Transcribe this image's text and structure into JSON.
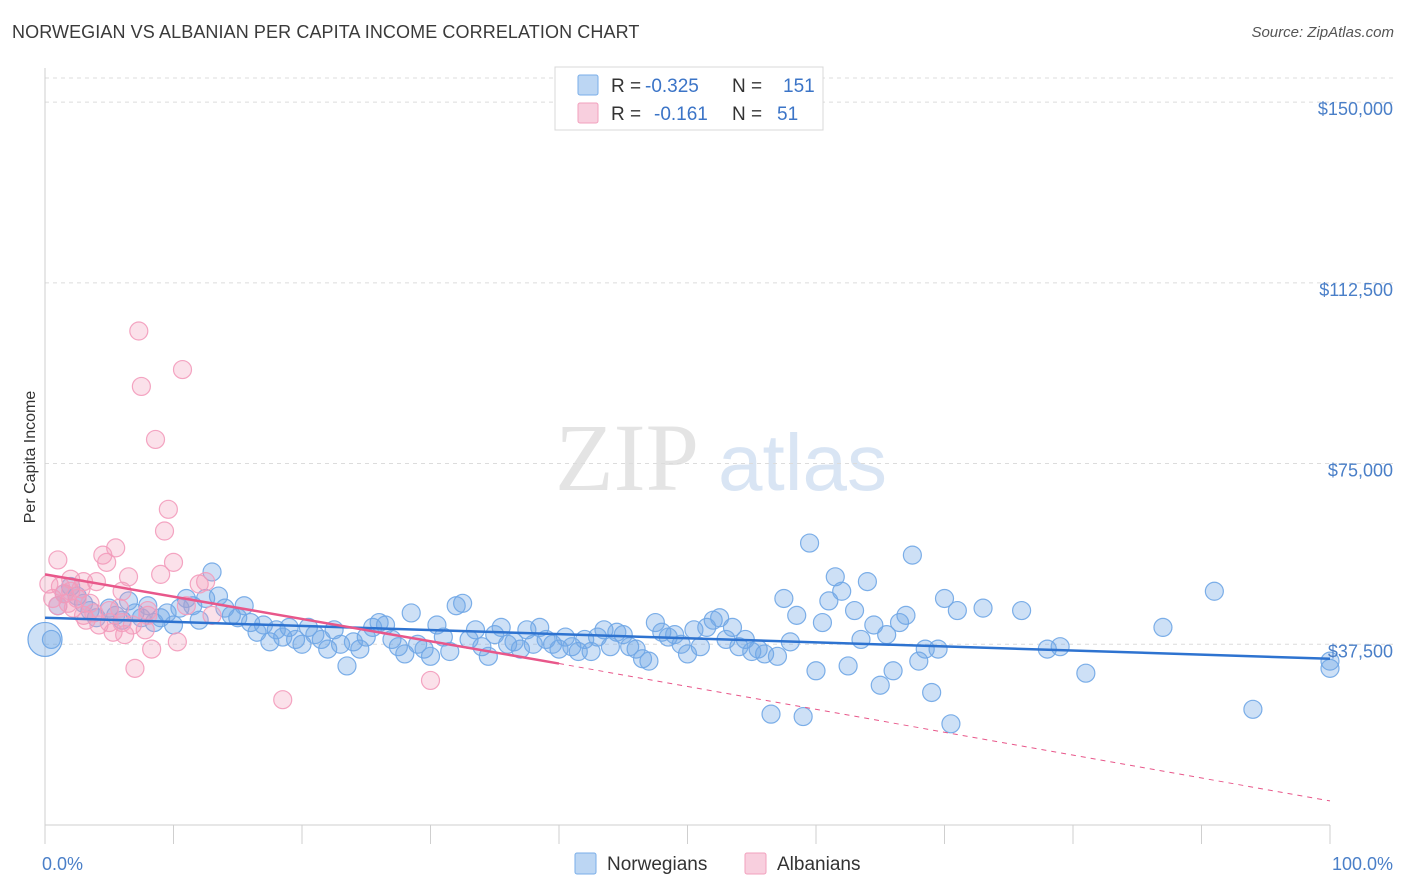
{
  "header": {
    "title": "NORWEGIAN VS ALBANIAN PER CAPITA INCOME CORRELATION CHART",
    "source": "Source: ZipAtlas.com"
  },
  "watermark": {
    "zip": "ZIP",
    "atlas": "atlas"
  },
  "legend": {
    "rows": [
      {
        "r_label": "R =",
        "r_value": "-0.325",
        "n_label": "N =",
        "n_value": "151",
        "color": "#7aaee8"
      },
      {
        "r_label": "R =",
        "r_value": "-0.161",
        "n_label": "N =",
        "n_value": "51",
        "color": "#f2a0bd"
      }
    ]
  },
  "chart_data": {
    "type": "scatter",
    "title": "NORWEGIAN VS ALBANIAN PER CAPITA INCOME CORRELATION CHART",
    "xlabel": "",
    "ylabel": "Per Capita Income",
    "xlim": [
      0,
      100
    ],
    "ylim": [
      0,
      155000
    ],
    "x_tick_labels": [
      "0.0%",
      "100.0%"
    ],
    "y_ticks": [
      37500,
      75000,
      112500,
      150000
    ],
    "y_tick_labels": [
      "$37,500",
      "$75,000",
      "$112,500",
      "$150,000"
    ],
    "grid": "horizontal dashed",
    "legend_position": "top-center",
    "colors": {
      "norwegians": "#6fa6e6",
      "albanians": "#f39bbb",
      "blue_line": "#2e73d0",
      "pink_line": "#e8578a"
    },
    "series": [
      {
        "name": "Norwegians",
        "trend": {
          "x": [
            0,
            100
          ],
          "y": [
            43000,
            34500
          ]
        },
        "points": [
          [
            0.5,
            38500
          ],
          [
            1,
            45500
          ],
          [
            1.5,
            48000
          ],
          [
            2,
            49500
          ],
          [
            2.5,
            47500
          ],
          [
            3,
            46000
          ],
          [
            3.5,
            44500
          ],
          [
            4,
            43000
          ],
          [
            5,
            45000
          ],
          [
            5.5,
            43500
          ],
          [
            6,
            42500
          ],
          [
            7,
            44000
          ],
          [
            7.5,
            43000
          ],
          [
            8,
            45500
          ],
          [
            8.5,
            42000
          ],
          [
            9,
            43000
          ],
          [
            9.5,
            44000
          ],
          [
            10,
            41500
          ],
          [
            10.5,
            45000
          ],
          [
            11,
            47000
          ],
          [
            11.5,
            45500
          ],
          [
            12,
            42500
          ],
          [
            12.5,
            47000
          ],
          [
            13,
            52500
          ],
          [
            13.5,
            47500
          ],
          [
            14,
            45000
          ],
          [
            14.5,
            43500
          ],
          [
            15,
            43000
          ],
          [
            15.5,
            45500
          ],
          [
            16,
            42000
          ],
          [
            16.5,
            40000
          ],
          [
            17,
            41500
          ],
          [
            17.5,
            38000
          ],
          [
            18,
            40500
          ],
          [
            18.5,
            39000
          ],
          [
            19,
            41000
          ],
          [
            19.5,
            38500
          ],
          [
            20,
            37500
          ],
          [
            20.5,
            41000
          ],
          [
            21,
            39500
          ],
          [
            21.5,
            38500
          ],
          [
            22,
            36500
          ],
          [
            22.5,
            40500
          ],
          [
            23,
            37500
          ],
          [
            23.5,
            33000
          ],
          [
            24,
            38000
          ],
          [
            24.5,
            36500
          ],
          [
            25,
            39000
          ],
          [
            25.5,
            41000
          ],
          [
            26,
            42000
          ],
          [
            26.5,
            41500
          ],
          [
            27,
            38500
          ],
          [
            27.5,
            37000
          ],
          [
            28,
            35500
          ],
          [
            28.5,
            44000
          ],
          [
            29,
            37500
          ],
          [
            29.5,
            36500
          ],
          [
            30,
            35000
          ],
          [
            30.5,
            41500
          ],
          [
            31,
            39000
          ],
          [
            31.5,
            36000
          ],
          [
            32,
            45500
          ],
          [
            32.5,
            46000
          ],
          [
            33,
            38500
          ],
          [
            33.5,
            40500
          ],
          [
            34,
            37000
          ],
          [
            34.5,
            35000
          ],
          [
            35,
            39500
          ],
          [
            35.5,
            41000
          ],
          [
            36,
            37500
          ],
          [
            36.5,
            38000
          ],
          [
            37,
            36500
          ],
          [
            37.5,
            40500
          ],
          [
            38,
            37500
          ],
          [
            38.5,
            41000
          ],
          [
            39,
            38500
          ],
          [
            39.5,
            37500
          ],
          [
            40,
            36500
          ],
          [
            40.5,
            39000
          ],
          [
            41,
            37000
          ],
          [
            41.5,
            36000
          ],
          [
            42,
            38500
          ],
          [
            42.5,
            36000
          ],
          [
            43,
            39000
          ],
          [
            43.5,
            40500
          ],
          [
            44,
            37000
          ],
          [
            44.5,
            40000
          ],
          [
            45,
            39500
          ],
          [
            45.5,
            37000
          ],
          [
            46,
            36500
          ],
          [
            46.5,
            34500
          ],
          [
            47,
            34000
          ],
          [
            47.5,
            42000
          ],
          [
            48,
            40000
          ],
          [
            48.5,
            39000
          ],
          [
            49,
            39500
          ],
          [
            49.5,
            37500
          ],
          [
            50,
            35500
          ],
          [
            50.5,
            40500
          ],
          [
            51,
            37000
          ],
          [
            51.5,
            41000
          ],
          [
            52,
            42500
          ],
          [
            52.5,
            43000
          ],
          [
            53,
            38500
          ],
          [
            53.5,
            41000
          ],
          [
            54,
            37000
          ],
          [
            54.5,
            38500
          ],
          [
            55,
            36000
          ],
          [
            55.5,
            36500
          ],
          [
            56,
            35500
          ],
          [
            56.5,
            23000
          ],
          [
            57,
            35000
          ],
          [
            57.5,
            47000
          ],
          [
            58,
            38000
          ],
          [
            58.5,
            43500
          ],
          [
            59,
            22500
          ],
          [
            59.5,
            58500
          ],
          [
            60,
            32000
          ],
          [
            60.5,
            42000
          ],
          [
            61,
            46500
          ],
          [
            61.5,
            51500
          ],
          [
            62,
            48500
          ],
          [
            62.5,
            33000
          ],
          [
            63,
            44500
          ],
          [
            63.5,
            38500
          ],
          [
            64,
            50500
          ],
          [
            64.5,
            41500
          ],
          [
            65,
            29000
          ],
          [
            65.5,
            39500
          ],
          [
            66,
            32000
          ],
          [
            66.5,
            42000
          ],
          [
            67,
            43500
          ],
          [
            67.5,
            56000
          ],
          [
            68,
            34000
          ],
          [
            68.5,
            36500
          ],
          [
            69,
            27500
          ],
          [
            69.5,
            36500
          ],
          [
            70,
            47000
          ],
          [
            70.5,
            21000
          ],
          [
            71,
            44500
          ],
          [
            73,
            45000
          ],
          [
            76,
            44500
          ],
          [
            78,
            36500
          ],
          [
            79,
            37000
          ],
          [
            81,
            31500
          ],
          [
            87,
            41000
          ],
          [
            91,
            48500
          ],
          [
            94,
            24000
          ],
          [
            100,
            34000
          ],
          [
            100,
            32500
          ],
          [
            6.5,
            46500
          ]
        ]
      },
      {
        "name": "Albanians",
        "trend": {
          "x": [
            0,
            40
          ],
          "y": [
            52000,
            33500
          ]
        },
        "trend_extension": {
          "x": [
            40,
            100
          ],
          "y": [
            33500,
            5000
          ]
        },
        "points": [
          [
            0.3,
            50000
          ],
          [
            0.6,
            47000
          ],
          [
            1,
            55000
          ],
          [
            1.2,
            49500
          ],
          [
            1.5,
            48000
          ],
          [
            1.8,
            46000
          ],
          [
            2,
            51000
          ],
          [
            2.2,
            45000
          ],
          [
            2.5,
            47000
          ],
          [
            2.8,
            49000
          ],
          [
            3,
            43500
          ],
          [
            3.2,
            42500
          ],
          [
            3.5,
            46000
          ],
          [
            3.8,
            44000
          ],
          [
            4,
            50500
          ],
          [
            4.2,
            41500
          ],
          [
            4.5,
            56000
          ],
          [
            4.8,
            54500
          ],
          [
            5,
            42000
          ],
          [
            5.3,
            40000
          ],
          [
            5.5,
            57500
          ],
          [
            5.8,
            45000
          ],
          [
            6,
            48500
          ],
          [
            6.2,
            39500
          ],
          [
            6.5,
            51500
          ],
          [
            6.8,
            41500
          ],
          [
            7,
            32500
          ],
          [
            7.3,
            102500
          ],
          [
            7.5,
            91000
          ],
          [
            7.8,
            40500
          ],
          [
            8,
            44500
          ],
          [
            8.3,
            36500
          ],
          [
            8.6,
            80000
          ],
          [
            9,
            52000
          ],
          [
            9.3,
            61000
          ],
          [
            9.6,
            65500
          ],
          [
            10,
            54500
          ],
          [
            10.3,
            38000
          ],
          [
            10.7,
            94500
          ],
          [
            11,
            45500
          ],
          [
            12,
            50000
          ],
          [
            12.5,
            50500
          ],
          [
            13,
            43500
          ],
          [
            18.5,
            26000
          ],
          [
            30,
            30000
          ],
          [
            1,
            45500
          ],
          [
            2,
            48500
          ],
          [
            3,
            50500
          ],
          [
            5,
            44500
          ],
          [
            6,
            42000
          ],
          [
            8,
            43500
          ]
        ]
      }
    ]
  },
  "bottom_legend": {
    "items": [
      {
        "label": "Norwegians",
        "color": "#7aaee8"
      },
      {
        "label": "Albanians",
        "color": "#f2a0bd"
      }
    ]
  }
}
